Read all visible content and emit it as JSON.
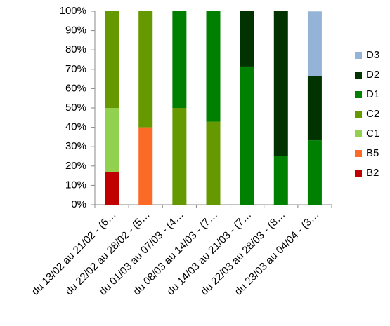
{
  "chart_data": {
    "type": "stacked_bar",
    "categories": [
      "du 13/02 au 21/02 - (6…",
      "du 22/02 au 28/02 - (5…",
      "du 01/03 au 07/03 - (4…",
      "du 08/03 au 14/03 - (7…",
      "du 14/03 au 21/03 - (7…",
      "du 22/03 au 28/03 - (8…",
      "du 23/03 au 04/04 - (3…"
    ],
    "series": [
      {
        "name": "B2",
        "color": "#c00000",
        "values": [
          16.7,
          null,
          null,
          null,
          null,
          null,
          null
        ]
      },
      {
        "name": "B5",
        "color": "#fb6a26",
        "values": [
          null,
          40,
          null,
          null,
          null,
          null,
          null
        ]
      },
      {
        "name": "C1",
        "color": "#92d050",
        "values": [
          33.3,
          null,
          null,
          null,
          null,
          null,
          null
        ]
      },
      {
        "name": "C2",
        "color": "#669900",
        "values": [
          50,
          60,
          50,
          42.9,
          null,
          null,
          null
        ]
      },
      {
        "name": "D1",
        "color": "#008000",
        "values": [
          null,
          null,
          50,
          57.1,
          71.4,
          25,
          33.3
        ]
      },
      {
        "name": "D2",
        "color": "#003300",
        "values": [
          null,
          null,
          null,
          null,
          28.6,
          75,
          33.3
        ]
      },
      {
        "name": "D3",
        "color": "#95b3d7",
        "values": [
          null,
          null,
          null,
          null,
          null,
          null,
          33.3
        ]
      }
    ],
    "ylim": [
      0,
      100
    ],
    "yticks": [
      {
        "value": 0,
        "label": "0%"
      },
      {
        "value": 10,
        "label": "10%"
      },
      {
        "value": 20,
        "label": "20%"
      },
      {
        "value": 30,
        "label": "30%"
      },
      {
        "value": 40,
        "label": "40%"
      },
      {
        "value": 50,
        "label": "50%"
      },
      {
        "value": 60,
        "label": "60%"
      },
      {
        "value": 70,
        "label": "70%"
      },
      {
        "value": 80,
        "label": "80%"
      },
      {
        "value": 90,
        "label": "90%"
      },
      {
        "value": 100,
        "label": "100%"
      }
    ],
    "grid": false,
    "legend": "right"
  }
}
